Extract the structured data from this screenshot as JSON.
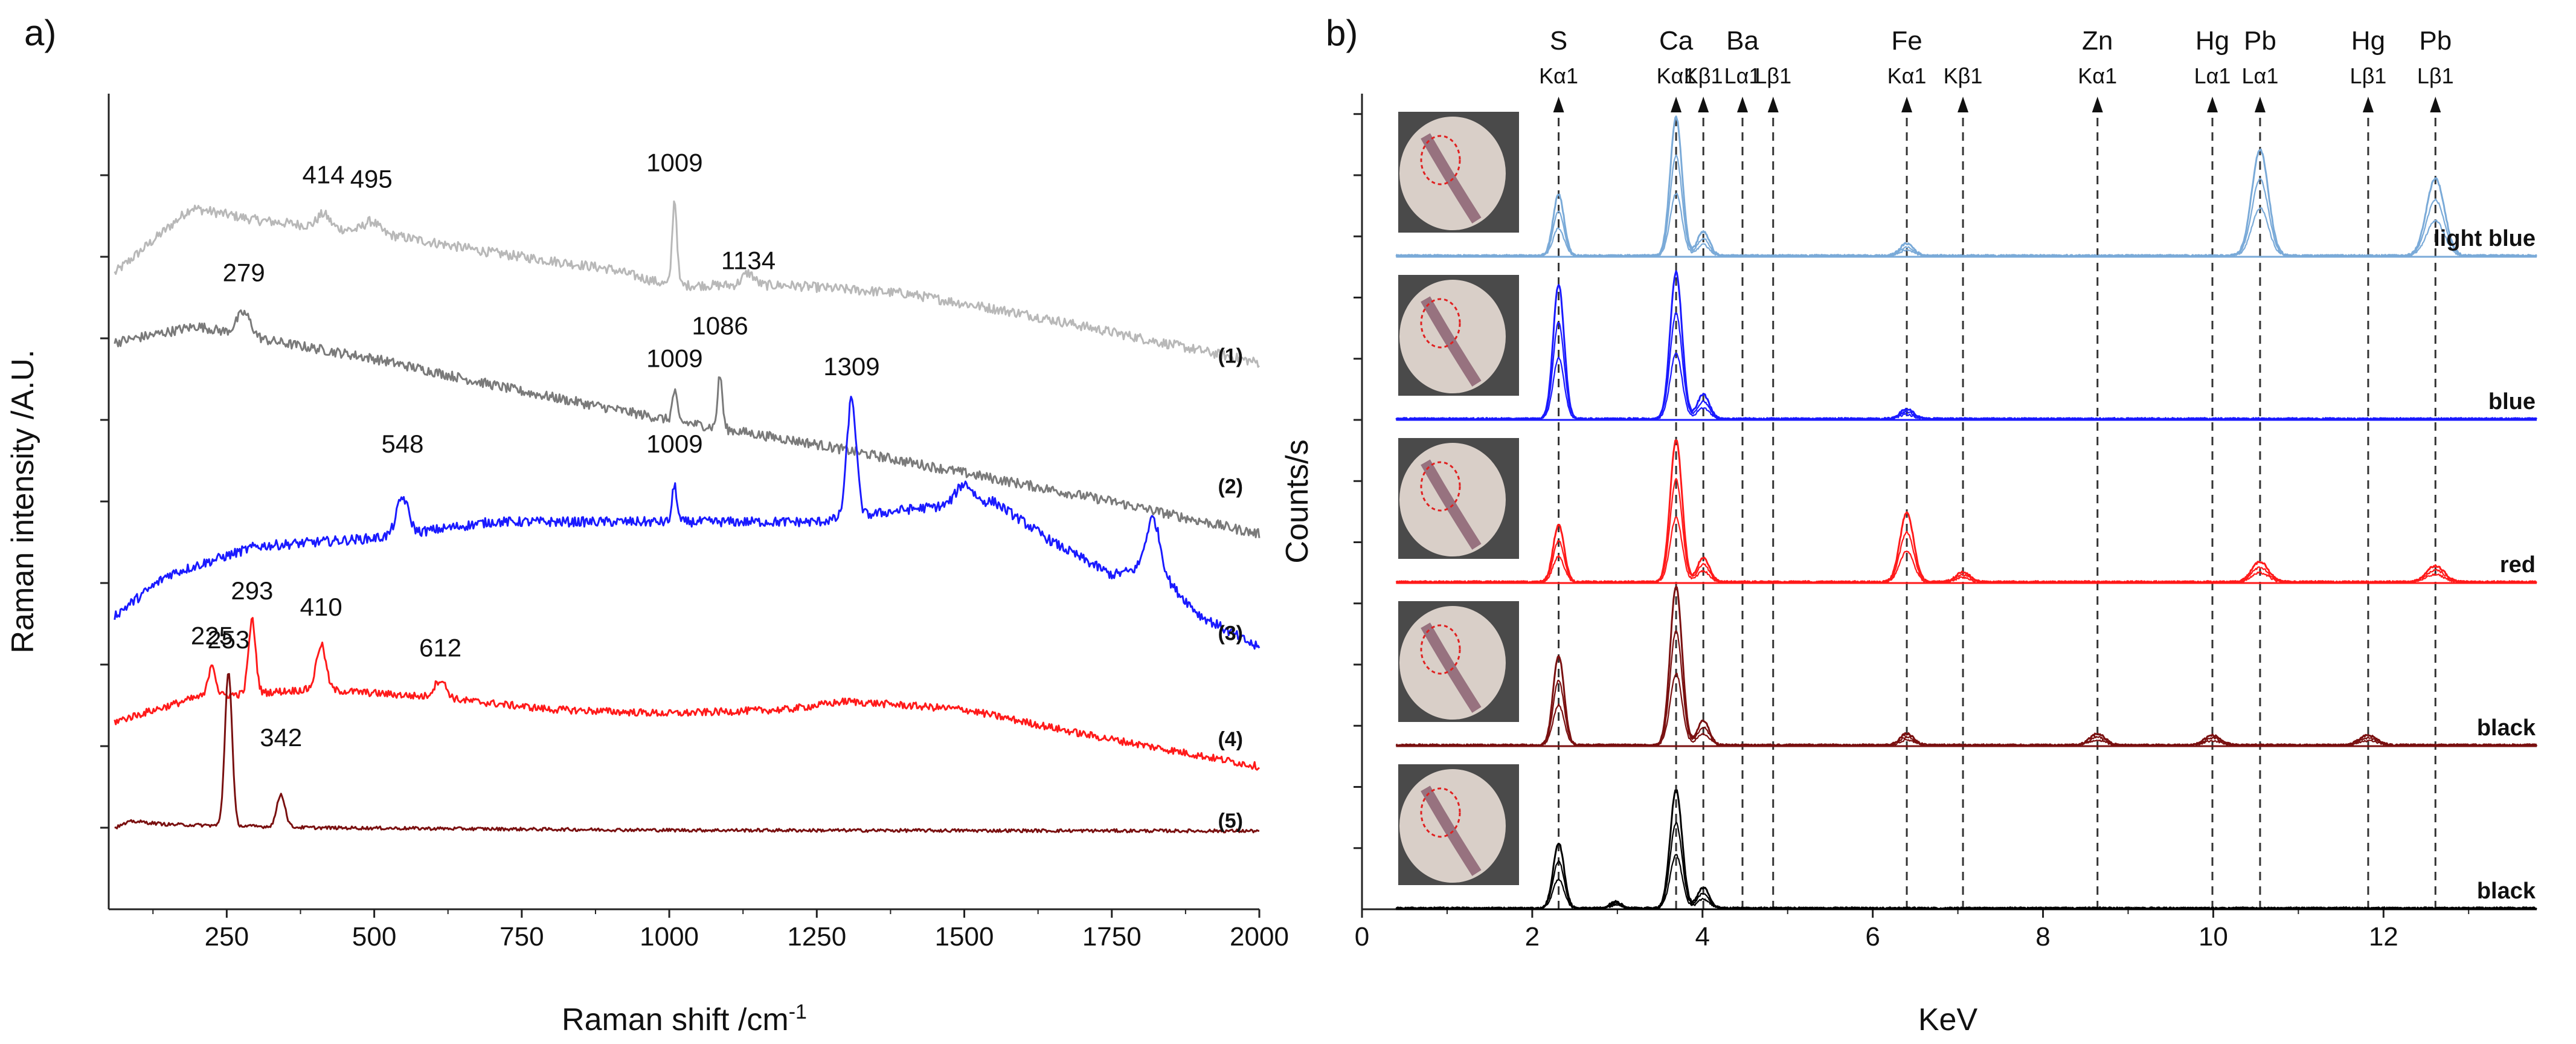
{
  "colors": {
    "light_gray": "#b8b8b8",
    "dark_gray": "#7a7a7a",
    "blue": "#1a1aff",
    "red": "#ff1a1a",
    "dark_red": "#7a1010",
    "light_blue": "#7aaad8",
    "black": "#000000"
  },
  "chart_data": [
    {
      "panel": "a)",
      "type": "line",
      "title": "",
      "xlabel": "Raman shift /cm",
      "xlabel_superscript": "-1",
      "ylabel": "Raman intensity /A.U.",
      "xlim": [
        50,
        2000
      ],
      "ylim": [
        0,
        100
      ],
      "xticks": [
        250,
        500,
        750,
        1000,
        1250,
        1500,
        1750,
        2000
      ],
      "xtick_labels": [
        "250",
        "500",
        "750",
        "1000",
        "1250",
        "1500",
        "1750",
        "2000"
      ],
      "yticks": [
        10,
        20,
        30,
        40,
        50,
        60,
        70,
        80,
        90
      ],
      "y_tick_labels_shown": false,
      "grid": false,
      "series": [
        {
          "name": "(1)",
          "color_key": "light_gray",
          "noise": 0.6,
          "baseline": [
            [
              60,
              78
            ],
            [
              190,
              86
            ],
            [
              300,
              84.5
            ],
            [
              500,
              83
            ],
            [
              700,
              80.5
            ],
            [
              900,
              78.5
            ],
            [
              1000,
              76.5
            ],
            [
              1200,
              76.5
            ],
            [
              1400,
              75.5
            ],
            [
              1600,
              73
            ],
            [
              1800,
              70
            ],
            [
              2000,
              67
            ]
          ],
          "peaks": [
            [
              414,
              1.6,
              10
            ],
            [
              495,
              1.3,
              12
            ],
            [
              1009,
              10.5,
              4
            ],
            [
              1134,
              1.5,
              10
            ]
          ],
          "labels": [
            {
              "text": "414",
              "x": 414,
              "y": 89
            },
            {
              "text": "495",
              "x": 495,
              "y": 88.5
            },
            {
              "text": "1009",
              "x": 1009,
              "y": 90.5
            },
            {
              "text": "1134",
              "x": 1134,
              "y": 78.5
            }
          ]
        },
        {
          "name": "(2)",
          "color_key": "dark_gray",
          "noise": 0.6,
          "baseline": [
            [
              60,
              69.5
            ],
            [
              200,
              71.5
            ],
            [
              300,
              70
            ],
            [
              500,
              67.5
            ],
            [
              750,
              63.5
            ],
            [
              1000,
              60
            ],
            [
              1250,
              57
            ],
            [
              1500,
              53.5
            ],
            [
              1750,
              50
            ],
            [
              2000,
              46
            ]
          ],
          "peaks": [
            [
              279,
              2.8,
              12
            ],
            [
              1009,
              3.6,
              4
            ],
            [
              1086,
              6.5,
              4
            ]
          ],
          "labels": [
            {
              "text": "279",
              "x": 279,
              "y": 77
            },
            {
              "text": "1009",
              "x": 1009,
              "y": 66.5
            },
            {
              "text": "1086",
              "x": 1086,
              "y": 70.5
            }
          ]
        },
        {
          "name": "(3)",
          "color_key": "blue",
          "noise": 0.6,
          "baseline": [
            [
              60,
              36
            ],
            [
              150,
              41
            ],
            [
              300,
              44.5
            ],
            [
              500,
              45.5
            ],
            [
              700,
              47.5
            ],
            [
              900,
              47.5
            ],
            [
              1100,
              47.5
            ],
            [
              1250,
              47.5
            ],
            [
              1400,
              49
            ],
            [
              1550,
              50
            ],
            [
              1650,
              45
            ],
            [
              1750,
              41
            ],
            [
              1820,
              42
            ],
            [
              1900,
              36
            ],
            [
              2000,
              32
            ]
          ],
          "peaks": [
            [
              548,
              4.5,
              10
            ],
            [
              1009,
              4.5,
              4
            ],
            [
              1309,
              14.5,
              8
            ],
            [
              1500,
              2.5,
              14
            ],
            [
              1820,
              6,
              12
            ]
          ],
          "labels": [
            {
              "text": "548",
              "x": 548,
              "y": 56
            },
            {
              "text": "1009",
              "x": 1009,
              "y": 56
            },
            {
              "text": "1309",
              "x": 1309,
              "y": 65.5
            }
          ]
        },
        {
          "name": "(4)",
          "color_key": "red",
          "noise": 0.45,
          "baseline": [
            [
              60,
              23
            ],
            [
              200,
              26
            ],
            [
              400,
              27
            ],
            [
              600,
              26
            ],
            [
              800,
              24.5
            ],
            [
              1000,
              24
            ],
            [
              1200,
              24.5
            ],
            [
              1300,
              25.5
            ],
            [
              1500,
              24.5
            ],
            [
              1700,
              21.5
            ],
            [
              2000,
              17.5
            ]
          ],
          "peaks": [
            [
              225,
              4,
              6
            ],
            [
              293,
              9,
              6
            ],
            [
              410,
              5.5,
              8
            ],
            [
              612,
              2.2,
              10
            ]
          ],
          "labels": [
            {
              "text": "225",
              "x": 225,
              "y": 32.5
            },
            {
              "text": "293",
              "x": 293,
              "y": 38
            },
            {
              "text": "410",
              "x": 410,
              "y": 36
            },
            {
              "text": "612",
              "x": 612,
              "y": 31
            }
          ]
        },
        {
          "name": "(5)",
          "color_key": "dark_red",
          "noise": 0.2,
          "baseline": [
            [
              60,
              10
            ],
            [
              90,
              10.8
            ],
            [
              150,
              10.4
            ],
            [
              400,
              10
            ],
            [
              1000,
              9.7
            ],
            [
              2000,
              9.6
            ]
          ],
          "peaks": [
            [
              253,
              19,
              6
            ],
            [
              342,
              4,
              7
            ]
          ],
          "labels": [
            {
              "text": "253",
              "x": 253,
              "y": 32
            },
            {
              "text": "342",
              "x": 342,
              "y": 20
            }
          ]
        }
      ],
      "trace_labels": [
        {
          "text": "(1)",
          "y": 67
        },
        {
          "text": "(2)",
          "y": 51
        },
        {
          "text": "(3)",
          "y": 33
        },
        {
          "text": "(4)",
          "y": 20
        },
        {
          "text": "(5)",
          "y": 10
        }
      ]
    },
    {
      "panel": "b)",
      "type": "line",
      "title": "",
      "xlabel": "KeV",
      "ylabel": "Counts/s",
      "xlim": [
        0,
        13.8
      ],
      "ylim": [
        0,
        100
      ],
      "xticks": [
        0,
        2,
        4,
        6,
        8,
        10,
        12
      ],
      "xtick_labels": [
        "0",
        "2",
        "4",
        "6",
        "8",
        "10",
        "12"
      ],
      "yticks": [
        7.5,
        15,
        22.5,
        30,
        37.5,
        45,
        52.5,
        60,
        67.5,
        75,
        82.5,
        90,
        97.5
      ],
      "y_tick_labels_shown": false,
      "grid": false,
      "element_markers": [
        {
          "element": "S",
          "line": "Kα1",
          "energy": 2.31
        },
        {
          "element": "Ca",
          "line": "Kα1",
          "energy": 3.69
        },
        {
          "element": "",
          "line": "Kβ1",
          "energy": 4.01
        },
        {
          "element": "Ba",
          "line": "Lα1",
          "energy": 4.47
        },
        {
          "element": "",
          "line": "Lβ1",
          "energy": 4.83
        },
        {
          "element": "Fe",
          "line": "Kα1",
          "energy": 6.4
        },
        {
          "element": "",
          "line": "Kβ1",
          "energy": 7.06
        },
        {
          "element": "Zn",
          "line": "Kα1",
          "energy": 8.64
        },
        {
          "element": "Hg",
          "line": "Lα1",
          "energy": 9.99
        },
        {
          "element": "Pb",
          "line": "Lα1",
          "energy": 10.55
        },
        {
          "element": "Hg",
          "line": "Lβ1",
          "energy": 11.82
        },
        {
          "element": "Pb",
          "line": "Lβ1",
          "energy": 12.61
        }
      ],
      "series": [
        {
          "name": "light blue",
          "color_key": "light_blue",
          "offset": 80,
          "peaks": [
            [
              2.31,
              7.5
            ],
            [
              3.69,
              17
            ],
            [
              4.01,
              3
            ],
            [
              6.4,
              1.5
            ],
            [
              10.55,
              13
            ],
            [
              12.61,
              9.5
            ]
          ]
        },
        {
          "name": "blue",
          "color_key": "blue",
          "offset": 60,
          "peaks": [
            [
              2.31,
              16.5
            ],
            [
              3.69,
              18
            ],
            [
              4.01,
              3
            ],
            [
              6.4,
              1.2
            ]
          ]
        },
        {
          "name": "red",
          "color_key": "red",
          "offset": 40,
          "peaks": [
            [
              2.31,
              7
            ],
            [
              3.69,
              17.5
            ],
            [
              4.01,
              3
            ],
            [
              6.4,
              8.5
            ],
            [
              7.06,
              1.2
            ],
            [
              10.55,
              2.5
            ],
            [
              12.61,
              2
            ]
          ]
        },
        {
          "name": "black",
          "color_key": "dark_red",
          "offset": 20,
          "peaks": [
            [
              2.31,
              11
            ],
            [
              3.69,
              19.5
            ],
            [
              4.01,
              3
            ],
            [
              6.4,
              1.4
            ],
            [
              8.64,
              1.4
            ],
            [
              9.99,
              1.2
            ],
            [
              11.82,
              1.2
            ]
          ]
        },
        {
          "name": "black",
          "color_key": "black",
          "offset": 0,
          "peaks": [
            [
              2.31,
              8
            ],
            [
              3.69,
              14.5
            ],
            [
              4.01,
              2.5
            ],
            [
              2.98,
              0.8
            ]
          ]
        }
      ]
    }
  ]
}
